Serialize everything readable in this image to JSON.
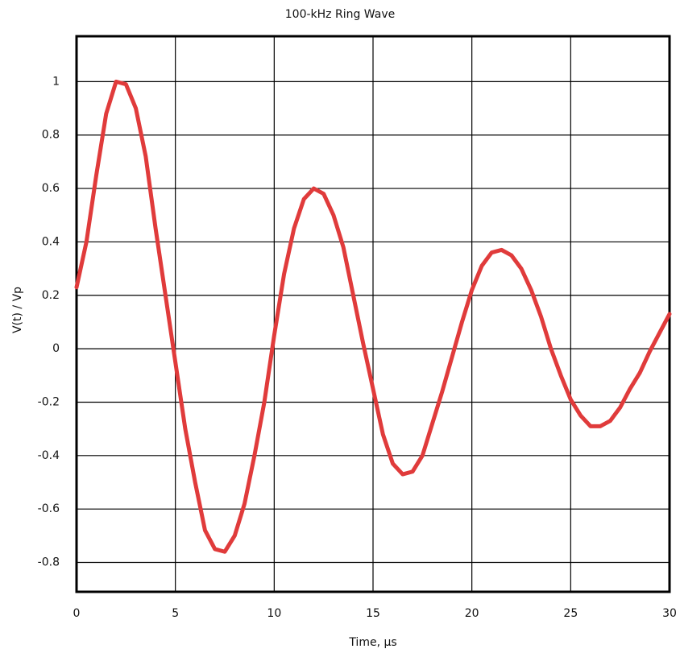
{
  "chart_data": {
    "type": "line",
    "title": "100-kHz Ring Wave",
    "x_label": "Time, μs",
    "y_label": "V(t) / Vp",
    "x": [
      0,
      0.5,
      1,
      1.5,
      2,
      2.5,
      3,
      3.5,
      4,
      4.5,
      5,
      5.5,
      6,
      6.5,
      7,
      7.5,
      8,
      8.5,
      9,
      9.5,
      10,
      10.5,
      11,
      11.5,
      12,
      12.5,
      13,
      13.5,
      14,
      14.5,
      15,
      15.5,
      16,
      16.5,
      17,
      17.5,
      18,
      18.5,
      19,
      19.5,
      20,
      20.5,
      21,
      21.5,
      22,
      22.5,
      23,
      23.5,
      24,
      24.5,
      25,
      25.5,
      26,
      26.5,
      27,
      27.5,
      28,
      28.5,
      29,
      29.5,
      30
    ],
    "series": [
      {
        "name": "V(t)",
        "color": "#e03b3b",
        "values": [
          0.23,
          0.4,
          0.65,
          0.88,
          1.0,
          0.99,
          0.9,
          0.72,
          0.45,
          0.2,
          -0.05,
          -0.3,
          -0.5,
          -0.68,
          -0.75,
          -0.76,
          -0.7,
          -0.58,
          -0.4,
          -0.2,
          0.05,
          0.28,
          0.45,
          0.56,
          0.6,
          0.58,
          0.5,
          0.38,
          0.2,
          0.02,
          -0.15,
          -0.32,
          -0.43,
          -0.47,
          -0.46,
          -0.4,
          -0.28,
          -0.16,
          -0.03,
          0.1,
          0.22,
          0.31,
          0.36,
          0.37,
          0.35,
          0.3,
          0.22,
          0.12,
          0.0,
          -0.1,
          -0.19,
          -0.25,
          -0.29,
          -0.29,
          -0.27,
          -0.22,
          -0.15,
          -0.09,
          -0.01,
          0.06,
          0.13
        ]
      }
    ],
    "xlim": [
      0,
      30
    ],
    "xticks": [
      0,
      5,
      10,
      15,
      20,
      25,
      30
    ],
    "ylim": [
      -0.91,
      1.17
    ],
    "yticks": [
      -0.8,
      -0.6,
      -0.4,
      -0.2,
      0,
      0.2,
      0.4,
      0.6,
      0.8,
      1
    ],
    "grid": true
  }
}
